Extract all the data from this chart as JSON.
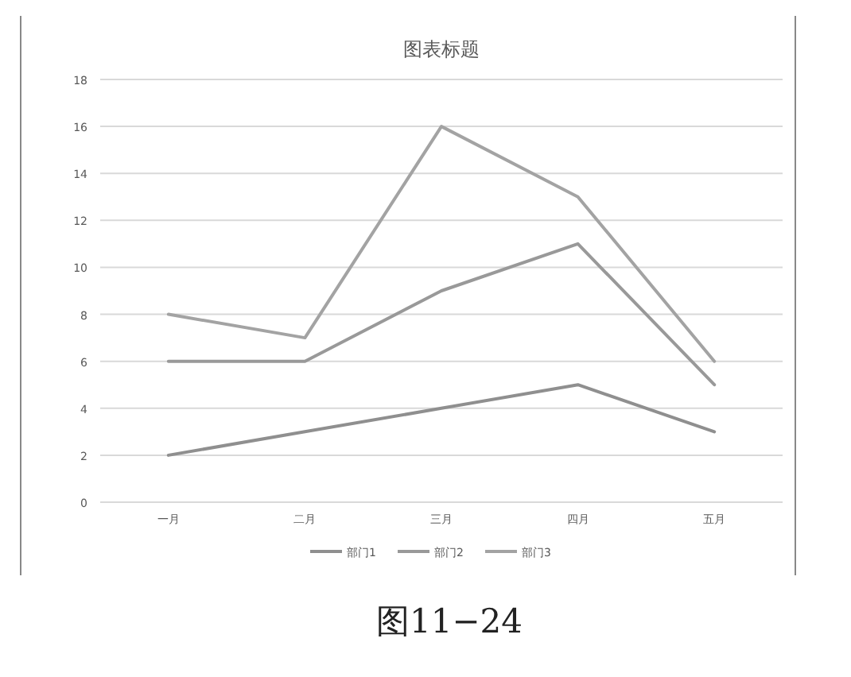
{
  "chart_data": {
    "type": "line",
    "title": "图表标题",
    "categories": [
      "一月",
      "二月",
      "三月",
      "四月",
      "五月"
    ],
    "series": [
      {
        "name": "部门1",
        "color": "#8f8f8f",
        "values": [
          2,
          3,
          4,
          5,
          3
        ]
      },
      {
        "name": "部门2",
        "color": "#999999",
        "values": [
          6,
          6,
          9,
          11,
          5
        ]
      },
      {
        "name": "部门3",
        "color": "#a3a3a3",
        "values": [
          8,
          7,
          16,
          13,
          6
        ]
      }
    ],
    "ylim": [
      0,
      18
    ],
    "yticks": [
      0,
      2,
      4,
      6,
      8,
      10,
      12,
      14,
      16,
      18
    ],
    "grid": "y",
    "legend": "bottom",
    "marker": "none",
    "line_style": "solid",
    "annotations": [
      "图11−24"
    ]
  }
}
